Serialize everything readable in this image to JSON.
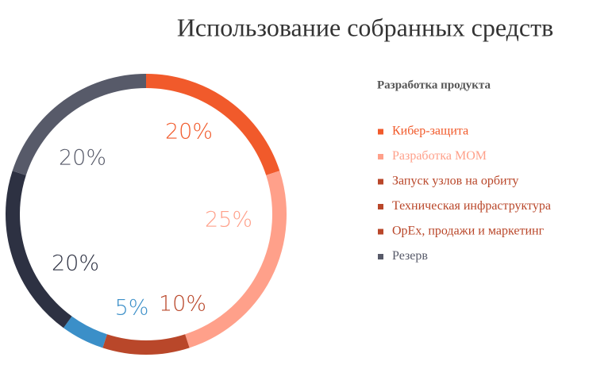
{
  "chart_data": {
    "type": "donut",
    "title": "Использование собранных средств",
    "legend_title": "Разработка продукта",
    "categories": [
      "Кибер-защита",
      "Разработка МОМ",
      "Запуск узлов на орбиту",
      "Техническая инфраструктура",
      "OpEx, продажи и маркетинг",
      "Резерв"
    ],
    "values": [
      20,
      25,
      10,
      5,
      20,
      20
    ],
    "value_labels": [
      "20%",
      "25%",
      "10%",
      "5%",
      "20%",
      "20%"
    ],
    "colors": [
      "#f15a2b",
      "#ffa08a",
      "#b9472a",
      "#3b8fc8",
      "#2d3142",
      "#575a69"
    ],
    "legend_colors": [
      "#f15a2b",
      "#ffa08a",
      "#b9472a",
      "#b9472a",
      "#b9472a",
      "#575a69"
    ]
  }
}
